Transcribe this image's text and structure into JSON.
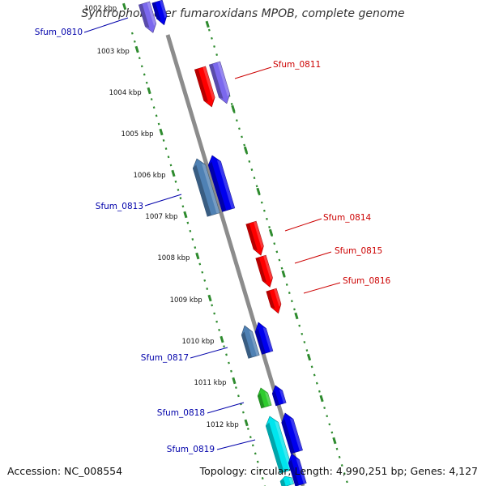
{
  "title": "Syntrophobacter fumaroxidans MPOB, complete genome",
  "footer": {
    "accession": "Accession: NC_008554",
    "summary": "Topology: circular; Length: 4,990,251 bp; Genes: 4,127"
  },
  "colors": {
    "backbone": "#8c8c8c",
    "tick": "#2e8b2e",
    "label_forward": "#cc0000",
    "label_reverse": "#0000aa",
    "gene_red": "#ff0000",
    "gene_blue": "#0000ee",
    "gene_steel": "#4f81b4",
    "gene_violet": "#7b68ee",
    "gene_green": "#2ecc2e",
    "gene_cyan": "#00e5ee"
  },
  "scale": {
    "unit": "kbp",
    "ticks": [
      "1002 kbp",
      "1003 kbp",
      "1004 kbp",
      "1005 kbp",
      "1006 kbp",
      "1007 kbp",
      "1008 kbp",
      "1009 kbp",
      "1010 kbp",
      "1011 kbp",
      "1012 kbp"
    ]
  },
  "gene_labels": [
    {
      "name": "Sfum_0810",
      "strand": "reverse"
    },
    {
      "name": "Sfum_0811",
      "strand": "forward"
    },
    {
      "name": "Sfum_0813",
      "strand": "reverse"
    },
    {
      "name": "Sfum_0814",
      "strand": "forward"
    },
    {
      "name": "Sfum_0815",
      "strand": "forward"
    },
    {
      "name": "Sfum_0816",
      "strand": "forward"
    },
    {
      "name": "Sfum_0817",
      "strand": "reverse"
    },
    {
      "name": "Sfum_0818",
      "strand": "reverse"
    },
    {
      "name": "Sfum_0819",
      "strand": "reverse"
    }
  ]
}
